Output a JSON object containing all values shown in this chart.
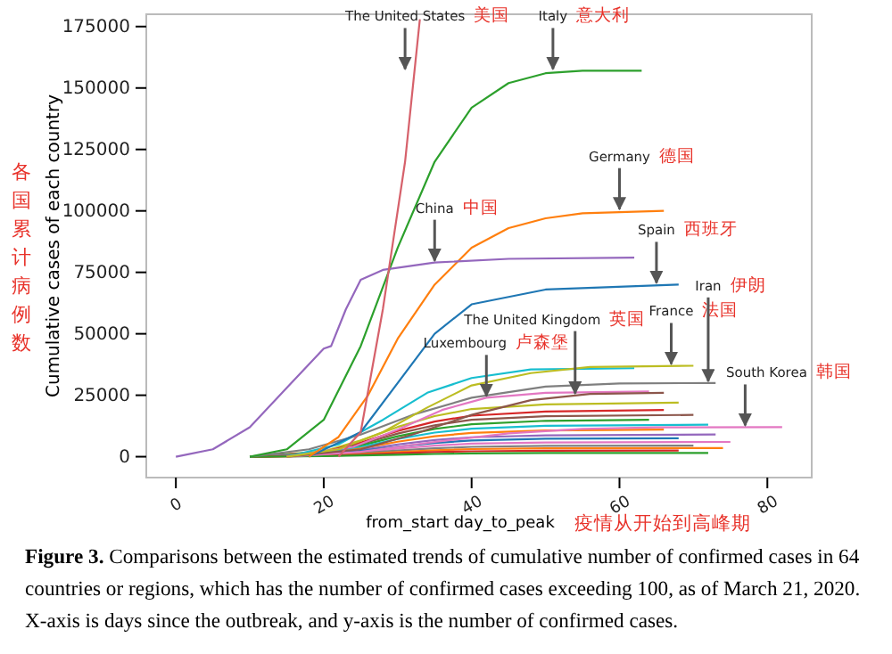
{
  "chart_data": {
    "type": "line",
    "xlabel": "from_start day_to_peak",
    "ylabel": "Cumulative cases of each country",
    "xlim": [
      -4,
      86
    ],
    "ylim": [
      -8500,
      180000
    ],
    "xticks": [
      0,
      20,
      40,
      60,
      80
    ],
    "yticks": [
      0,
      25000,
      50000,
      75000,
      100000,
      125000,
      150000,
      175000
    ],
    "grid": false,
    "marker": "none",
    "line_style": "solid",
    "series": [
      {
        "color": "#bcbd22",
        "x": [
          10,
          20,
          25,
          30,
          35,
          40,
          50,
          68
        ],
        "values": [
          0,
          2200,
          6600,
          12100,
          16500,
          19400,
          21300,
          22000
        ]
      },
      {
        "color": "#d62728",
        "x": [
          10,
          20,
          25,
          30,
          35,
          40,
          50,
          66
        ],
        "values": [
          0,
          1900,
          5700,
          10500,
          14300,
          16700,
          18400,
          19000
        ]
      },
      {
        "color": "#8c564b",
        "x": [
          10,
          20,
          25,
          30,
          35,
          40,
          50,
          70
        ],
        "values": [
          0,
          1700,
          5100,
          9400,
          12800,
          15000,
          16500,
          17000
        ]
      },
      {
        "color": "#2ca02c",
        "x": [
          10,
          20,
          25,
          30,
          35,
          40,
          50,
          64
        ],
        "values": [
          0,
          1500,
          4500,
          8300,
          11300,
          13200,
          14600,
          15000
        ]
      },
      {
        "color": "#17becf",
        "x": [
          10,
          20,
          25,
          30,
          35,
          40,
          50,
          72
        ],
        "values": [
          0,
          1300,
          3900,
          7200,
          9800,
          11400,
          12600,
          13000
        ]
      },
      {
        "color": "#ff7f0e",
        "x": [
          10,
          20,
          25,
          30,
          35,
          40,
          50,
          66
        ],
        "values": [
          0,
          1100,
          3300,
          6100,
          8300,
          9700,
          10700,
          11000
        ]
      },
      {
        "color": "#9467bd",
        "x": [
          10,
          20,
          25,
          30,
          35,
          40,
          50,
          73
        ],
        "values": [
          0,
          900,
          2700,
          5000,
          6800,
          7900,
          8700,
          9000
        ]
      },
      {
        "color": "#1f77b4",
        "x": [
          10,
          20,
          25,
          30,
          35,
          40,
          50,
          68
        ],
        "values": [
          0,
          800,
          2300,
          4100,
          5600,
          6600,
          7300,
          7500
        ]
      },
      {
        "color": "#e377c2",
        "x": [
          10,
          20,
          25,
          30,
          35,
          40,
          50,
          75
        ],
        "values": [
          0,
          600,
          1800,
          3300,
          4500,
          5300,
          5800,
          6000
        ]
      },
      {
        "color": "#7f7f7f",
        "x": [
          10,
          20,
          25,
          30,
          35,
          40,
          50,
          70
        ],
        "values": [
          0,
          500,
          1400,
          2500,
          3400,
          4000,
          4400,
          4500
        ]
      },
      {
        "color": "#ff7f0e",
        "x": [
          10,
          20,
          25,
          30,
          35,
          40,
          50,
          74
        ],
        "values": [
          0,
          400,
          1100,
          1900,
          2600,
          3100,
          3400,
          3500
        ]
      },
      {
        "color": "#d62728",
        "x": [
          10,
          20,
          25,
          30,
          35,
          40,
          50,
          68
        ],
        "values": [
          0,
          300,
          800,
          1400,
          1900,
          2200,
          2400,
          2500
        ]
      },
      {
        "color": "#2ca02c",
        "x": [
          10,
          20,
          25,
          30,
          35,
          40,
          50,
          72
        ],
        "values": [
          0,
          200,
          500,
          800,
          1100,
          1300,
          1500,
          1500
        ]
      },
      {
        "color": "#17becf",
        "x": [
          15,
          22,
          28,
          34,
          40,
          48,
          62
        ],
        "values": [
          0,
          5000,
          15000,
          26000,
          32000,
          35500,
          36000
        ]
      },
      {
        "color": "#e377c2",
        "x": [
          15,
          25,
          35,
          45,
          55,
          65,
          82
        ],
        "values": [
          0,
          2000,
          6000,
          9500,
          11300,
          11900,
          12000
        ]
      },
      {
        "color": "#e377c2",
        "x": [
          15,
          24,
          30,
          36,
          42,
          50,
          64
        ],
        "values": [
          0,
          4000,
          11000,
          19000,
          24000,
          26000,
          26500
        ]
      },
      {
        "color": "#8c564b",
        "x": [
          15,
          25,
          32,
          40,
          48,
          56,
          66
        ],
        "values": [
          0,
          3000,
          9000,
          17000,
          23000,
          25500,
          26000
        ]
      },
      {
        "color": "#7f7f7f",
        "x": [
          10,
          18,
          25,
          32,
          40,
          50,
          60,
          73
        ],
        "values": [
          0,
          3000,
          9000,
          17000,
          24000,
          28500,
          29800,
          30000
        ]
      },
      {
        "color": "#bcbd22",
        "x": [
          15,
          22,
          28,
          34,
          40,
          48,
          56,
          70
        ],
        "values": [
          0,
          3000,
          10000,
          20000,
          29000,
          34000,
          36500,
          37000
        ]
      },
      {
        "color": "#1f77b4",
        "x": [
          18,
          25,
          30,
          35,
          40,
          50,
          68
        ],
        "values": [
          0,
          10000,
          30000,
          50000,
          62000,
          68000,
          70000
        ]
      },
      {
        "color": "#ff7f0e",
        "x": [
          18,
          22,
          26,
          30,
          35,
          40,
          45,
          50,
          55,
          66
        ],
        "values": [
          0,
          8000,
          25000,
          48000,
          70000,
          85000,
          93000,
          97000,
          99000,
          100000
        ]
      },
      {
        "color": "#2ca02c",
        "x": [
          10,
          15,
          20,
          25,
          30,
          35,
          40,
          45,
          50,
          55,
          63
        ],
        "values": [
          0,
          3000,
          15000,
          45000,
          85000,
          120000,
          142000,
          152000,
          156000,
          157000,
          157000
        ]
      },
      {
        "color": "#9467bd",
        "x": [
          0,
          5,
          10,
          15,
          20,
          21,
          23,
          25,
          28,
          35,
          45,
          62
        ],
        "values": [
          0,
          3000,
          12000,
          28000,
          44000,
          45000,
          60000,
          72000,
          76000,
          79000,
          80500,
          81000
        ]
      },
      {
        "color": "#d6616b",
        "x": [
          22,
          25,
          28,
          31,
          33
        ],
        "values": [
          0,
          10000,
          60000,
          120000,
          178000
        ]
      }
    ],
    "annotations": [
      {
        "text": "The United States",
        "x": 31,
        "y": 157000
      },
      {
        "text": "Italy",
        "x": 51,
        "y": 157000
      },
      {
        "text": "Germany",
        "x": 60,
        "y": 100000
      },
      {
        "text": "China",
        "x": 35,
        "y": 79000
      },
      {
        "text": "Spain",
        "x": 65,
        "y": 70000
      },
      {
        "text": "Luxembourg",
        "x": 42,
        "y": 24000
      },
      {
        "text": "The United Kingdom",
        "x": 54,
        "y": 25000
      },
      {
        "text": "France",
        "x": 67,
        "y": 37000
      },
      {
        "text": "Iran",
        "x": 72,
        "y": 30000
      },
      {
        "text": "South Korea",
        "x": 77,
        "y": 12000
      },
      "美国",
      "意大利",
      "德国",
      "中国",
      "西班牙",
      "卢森堡",
      "英国",
      "法国",
      "伊朗",
      "韩国",
      "各国累计病例数",
      "疫情从开始到高峰期",
      "Figure 3. Comparisons between the estimated trends of cumulative number of confirmed cases in 64 countries or regions, which has the number of confirmed cases exceeding 100, as of March 21, 2020. X-axis is days since the outbreak, and y-axis is the number of confirmed cases."
    ]
  }
}
